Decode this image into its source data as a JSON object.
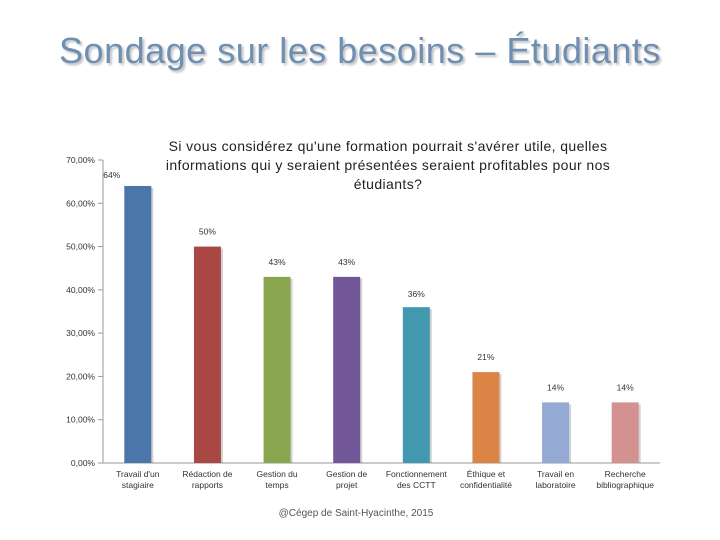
{
  "slide": {
    "title": "Sondage sur les besoins – Étudiants",
    "footer": "@Cégep de Saint-Hyacinthe, 2015"
  },
  "chart_data": {
    "type": "bar",
    "title": "Si vous considérez qu'une formation pourrait s'avérer utile, quelles informations qui y seraient présentées seraient profitables pour nos étudiants?",
    "xlabel": "",
    "ylabel": "",
    "ylim": [
      0,
      70
    ],
    "grid": false,
    "y_ticks": [
      0,
      10,
      20,
      30,
      40,
      50,
      60,
      70
    ],
    "y_tick_labels": [
      "0,00%",
      "10,00%",
      "20,00%",
      "30,00%",
      "40,00%",
      "50,00%",
      "60,00%",
      "70,00%"
    ],
    "categories": [
      "Travail d'un stagiaire",
      "Rédaction de rapports",
      "Gestion du temps",
      "Gestion de projet",
      "Fonctionnement des CCTT",
      "Éthique et confidentialité",
      "Travail en laboratoire",
      "Recherche bibliographique"
    ],
    "category_lines": [
      [
        "Travail d'un",
        "stagiaire"
      ],
      [
        "Rédaction de",
        "rapports"
      ],
      [
        "Gestion du",
        "temps"
      ],
      [
        "Gestion de",
        "projet"
      ],
      [
        "Fonctionnement",
        "des CCTT"
      ],
      [
        "Éthique et",
        "confidentialité"
      ],
      [
        "Travail en",
        "laboratoire"
      ],
      [
        "Recherche",
        "bibliographique"
      ]
    ],
    "values": [
      64,
      50,
      43,
      43,
      36,
      21,
      14,
      14
    ],
    "data_labels": [
      "64%",
      "50%",
      "43%",
      "43%",
      "36%",
      "21%",
      "14%",
      "14%"
    ],
    "colors": [
      "#4a76aa",
      "#a94744",
      "#89a54e",
      "#715797",
      "#4198af",
      "#db8445",
      "#94a9d3",
      "#d39290"
    ]
  }
}
